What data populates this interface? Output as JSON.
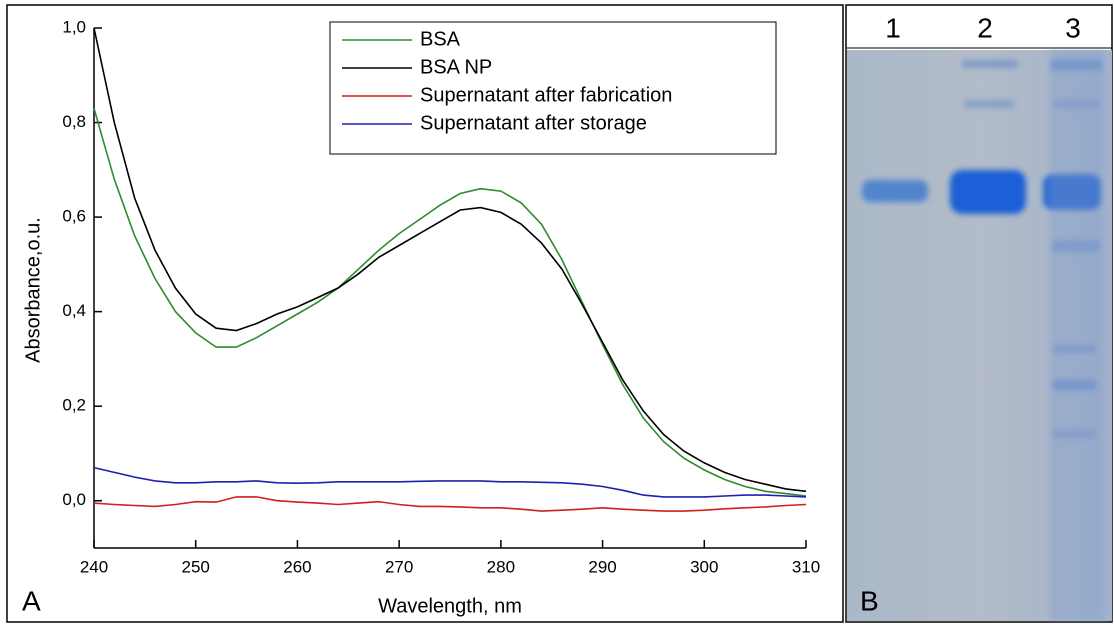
{
  "chart_data": {
    "type": "line",
    "panel_label": "A",
    "x_label": "Wavelength, nm",
    "y_label": "Absorbance,o.u.",
    "x": [
      240,
      242,
      244,
      246,
      248,
      250,
      252,
      254,
      256,
      258,
      260,
      262,
      264,
      266,
      268,
      270,
      272,
      274,
      276,
      278,
      280,
      282,
      284,
      286,
      288,
      290,
      292,
      294,
      296,
      298,
      300,
      302,
      304,
      306,
      308,
      310
    ],
    "series": [
      {
        "name": "BSA",
        "color": "#2e8b2e",
        "values": [
          0.83,
          0.68,
          0.56,
          0.47,
          0.4,
          0.355,
          0.325,
          0.325,
          0.345,
          0.37,
          0.395,
          0.42,
          0.45,
          0.49,
          0.53,
          0.565,
          0.595,
          0.625,
          0.65,
          0.66,
          0.655,
          0.63,
          0.585,
          0.51,
          0.42,
          0.33,
          0.245,
          0.175,
          0.125,
          0.09,
          0.065,
          0.045,
          0.03,
          0.02,
          0.015,
          0.01
        ]
      },
      {
        "name": "BSA NP",
        "color": "#000000",
        "values": [
          1.0,
          0.8,
          0.64,
          0.53,
          0.45,
          0.395,
          0.365,
          0.36,
          0.375,
          0.395,
          0.41,
          0.43,
          0.45,
          0.48,
          0.515,
          0.54,
          0.565,
          0.59,
          0.615,
          0.62,
          0.61,
          0.585,
          0.545,
          0.49,
          0.415,
          0.335,
          0.255,
          0.19,
          0.14,
          0.105,
          0.08,
          0.06,
          0.045,
          0.035,
          0.025,
          0.02
        ]
      },
      {
        "name": "Supernatant after fabrication",
        "color": "#d02020",
        "values": [
          -0.005,
          -0.008,
          -0.01,
          -0.012,
          -0.008,
          -0.002,
          -0.003,
          0.008,
          0.008,
          0,
          -0.003,
          -0.005,
          -0.008,
          -0.005,
          -0.002,
          -0.008,
          -0.012,
          -0.012,
          -0.013,
          -0.015,
          -0.015,
          -0.018,
          -0.022,
          -0.02,
          -0.018,
          -0.015,
          -0.018,
          -0.02,
          -0.022,
          -0.022,
          -0.02,
          -0.017,
          -0.015,
          -0.013,
          -0.01,
          -0.008
        ]
      },
      {
        "name": "Supernatant after storage",
        "color": "#1f1fb0",
        "values": [
          0.07,
          0.06,
          0.05,
          0.042,
          0.038,
          0.038,
          0.04,
          0.04,
          0.042,
          0.038,
          0.037,
          0.038,
          0.04,
          0.04,
          0.04,
          0.04,
          0.041,
          0.042,
          0.042,
          0.042,
          0.04,
          0.04,
          0.039,
          0.038,
          0.035,
          0.03,
          0.022,
          0.012,
          0.008,
          0.008,
          0.008,
          0.01,
          0.012,
          0.012,
          0.01,
          0.008
        ]
      }
    ],
    "xlim": [
      240,
      310
    ],
    "ylim": [
      -0.1,
      1.0
    ],
    "xticks": [
      240,
      250,
      260,
      270,
      280,
      290,
      300,
      310
    ],
    "yticks": [
      {
        "value": 0,
        "label": "0,0"
      },
      {
        "value": 0.2,
        "label": "0,2"
      },
      {
        "value": 0.4,
        "label": "0,4"
      },
      {
        "value": 0.6,
        "label": "0,6"
      },
      {
        "value": 0.8,
        "label": "0,8"
      },
      {
        "value": 1.0,
        "label": "1,0"
      }
    ],
    "grid": false,
    "legend": "top-right"
  },
  "gel": {
    "panel_label": "B",
    "lanes": [
      "1",
      "2",
      "3"
    ]
  }
}
